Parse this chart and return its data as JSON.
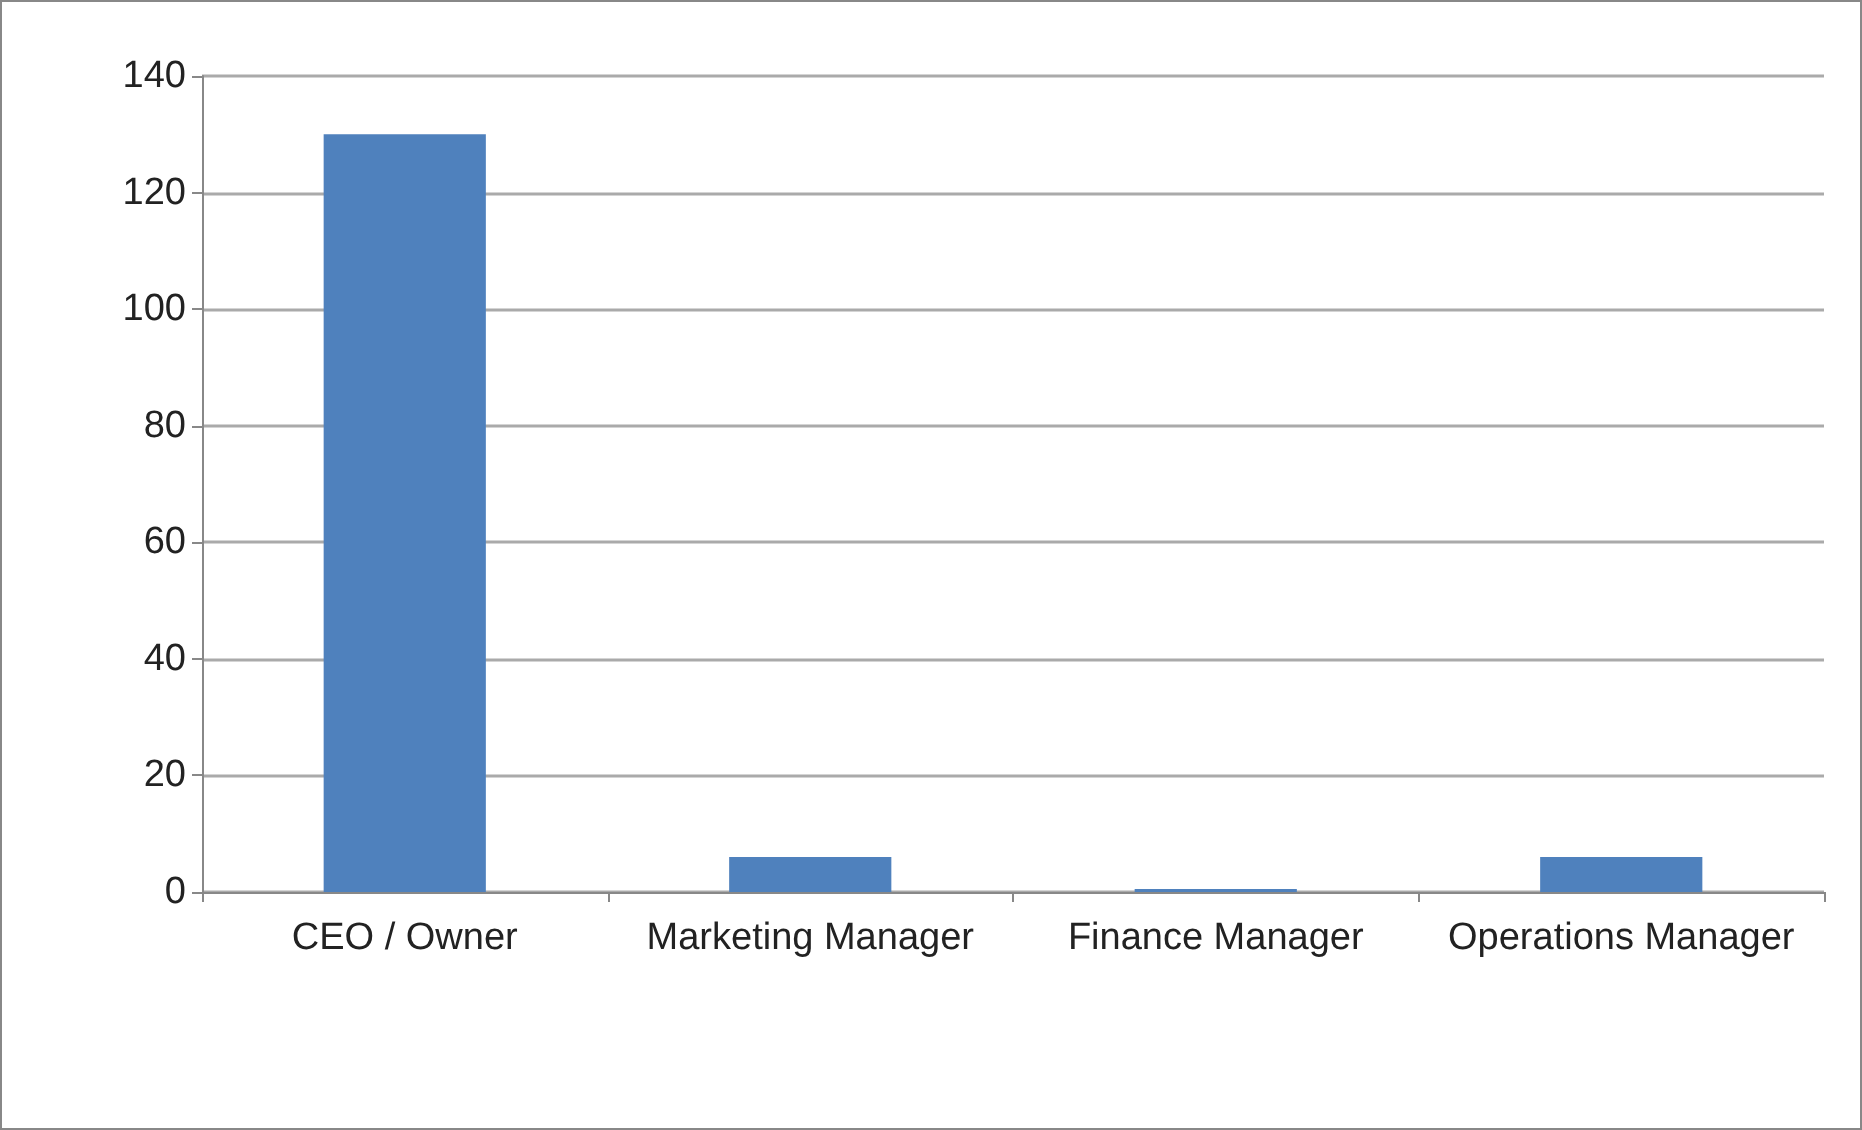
{
  "chart_data": {
    "type": "bar",
    "categories": [
      "CEO / Owner",
      "Marketing Manager",
      "Finance Manager",
      "Operations Manager"
    ],
    "values": [
      130,
      6,
      0.5,
      6
    ],
    "color": "#4f81bd",
    "ylim": [
      0,
      140
    ],
    "yticks": [
      0,
      20,
      40,
      60,
      80,
      100,
      120,
      140
    ],
    "grid": "y"
  }
}
